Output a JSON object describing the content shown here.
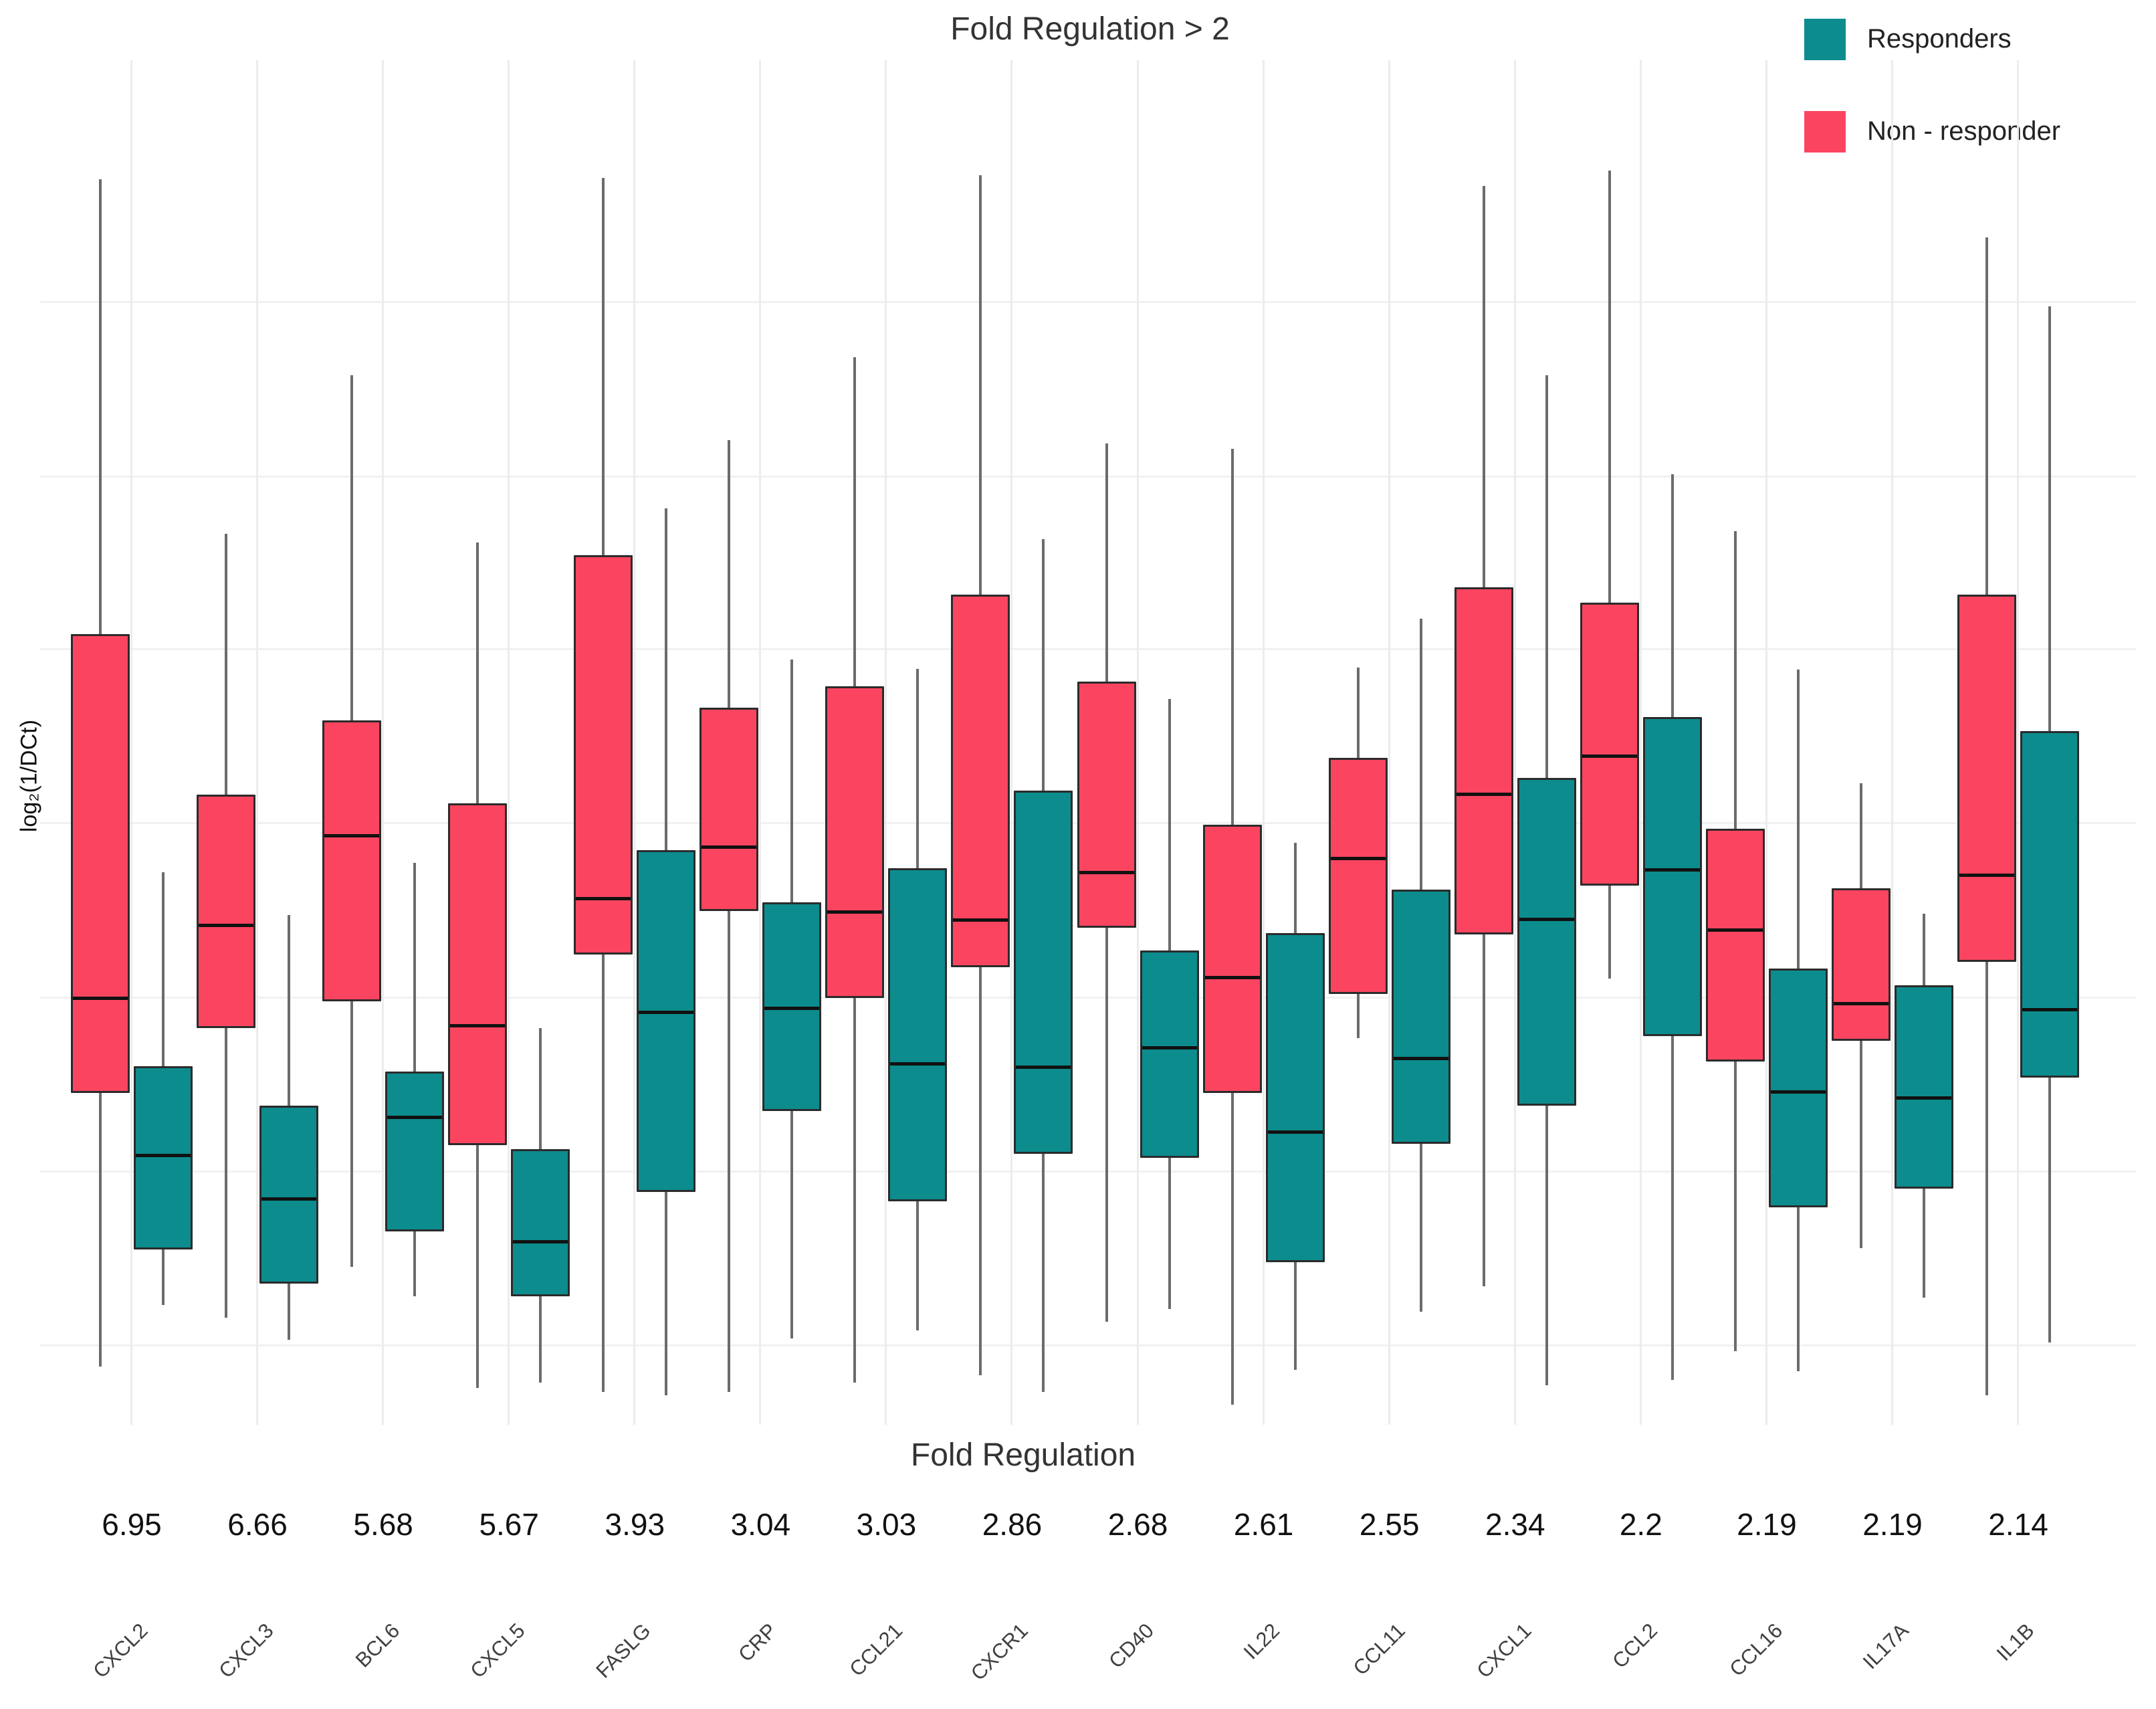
{
  "title": "Fold Regulation > 2",
  "y_axis_label": "log₂(1/DCt)",
  "x_axis_title": "Fold Regulation",
  "legend": {
    "items": [
      {
        "label": "Responders",
        "color": "#0D8C8E"
      },
      {
        "label": "Non - responder",
        "color": "#FB4560"
      }
    ]
  },
  "colors": {
    "responders": "#0D8C8E",
    "non_responder": "#FB4560",
    "whisker": "#6b6b6b",
    "box_border": "#2b2b2b",
    "median": "#111111"
  },
  "chart_data": {
    "type": "boxplot",
    "title": "Fold Regulation > 2",
    "xlabel": "Fold Regulation",
    "ylabel": "log₂(1/DCt)",
    "legend_position": "top-right",
    "grid": true,
    "y_unit": "relative scale 0-100 (no numeric ticks shown)",
    "categories": [
      "CXCL2",
      "CXCL3",
      "BCL6",
      "CXCL5",
      "FASLG",
      "CRP",
      "CCL21",
      "CXCR1",
      "CD40",
      "IL22",
      "CCL11",
      "CXCL1",
      "CCL2",
      "CCL16",
      "IL17A",
      "IL1B"
    ],
    "fold_regulation": [
      "6.95",
      "6.66",
      "5.68",
      "5.67",
      "3.93",
      "3.04",
      "3.03",
      "2.86",
      "2.68",
      "2.61",
      "2.55",
      "2.34",
      "2.2",
      "2.19",
      "2.19",
      "2.14"
    ],
    "series": [
      {
        "name": "Non - responder",
        "color": "#FB4560",
        "boxes": [
          {
            "low": 4.6,
            "q1": 26.1,
            "median": 33.6,
            "q3": 62.2,
            "high": 98.0
          },
          {
            "low": 8.4,
            "q1": 31.2,
            "median": 39.4,
            "q3": 49.6,
            "high": 70.1
          },
          {
            "low": 12.4,
            "q1": 33.3,
            "median": 46.5,
            "q3": 55.4,
            "high": 82.6
          },
          {
            "low": 2.9,
            "q1": 22.0,
            "median": 31.5,
            "q3": 48.9,
            "high": 69.4
          },
          {
            "low": 2.6,
            "q1": 37.0,
            "median": 41.4,
            "q3": 68.4,
            "high": 98.1
          },
          {
            "low": 2.6,
            "q1": 40.4,
            "median": 45.5,
            "q3": 56.4,
            "high": 77.5
          },
          {
            "low": 3.3,
            "q1": 33.6,
            "median": 40.4,
            "q3": 58.1,
            "high": 84.0
          },
          {
            "low": 3.9,
            "q1": 36.0,
            "median": 39.7,
            "q3": 65.3,
            "high": 98.3
          },
          {
            "low": 8.1,
            "q1": 39.1,
            "median": 43.5,
            "q3": 58.5,
            "high": 77.2
          },
          {
            "low": 1.6,
            "q1": 26.1,
            "median": 35.3,
            "q3": 47.2,
            "high": 76.8
          },
          {
            "low": 30.4,
            "q1": 33.9,
            "median": 44.7,
            "q3": 52.5,
            "high": 59.6
          },
          {
            "low": 10.9,
            "q1": 38.6,
            "median": 49.7,
            "q3": 65.9,
            "high": 97.5
          },
          {
            "low": 35.1,
            "q1": 42.4,
            "median": 52.7,
            "q3": 64.7,
            "high": 98.7
          },
          {
            "low": 5.8,
            "q1": 28.6,
            "median": 39.1,
            "q3": 46.9,
            "high": 70.3
          },
          {
            "low": 13.9,
            "q1": 30.2,
            "median": 33.2,
            "q3": 42.2,
            "high": 50.5
          },
          {
            "low": 2.3,
            "q1": 36.4,
            "median": 43.3,
            "q3": 65.3,
            "high": 93.4
          }
        ]
      },
      {
        "name": "Responders",
        "color": "#0D8C8E",
        "boxes": [
          {
            "low": 9.4,
            "q1": 13.8,
            "median": 21.3,
            "q3": 28.2,
            "high": 43.5
          },
          {
            "low": 6.7,
            "q1": 11.1,
            "median": 17.9,
            "q3": 25.1,
            "high": 40.1
          },
          {
            "low": 10.1,
            "q1": 15.2,
            "median": 24.4,
            "q3": 27.8,
            "high": 44.2
          },
          {
            "low": 3.3,
            "q1": 10.1,
            "median": 14.5,
            "q3": 21.7,
            "high": 31.2
          },
          {
            "low": 2.3,
            "q1": 18.3,
            "median": 32.6,
            "q3": 45.2,
            "high": 72.1
          },
          {
            "low": 6.8,
            "q1": 24.7,
            "median": 32.9,
            "q3": 41.1,
            "high": 60.2
          },
          {
            "low": 7.4,
            "q1": 17.6,
            "median": 28.5,
            "q3": 43.8,
            "high": 59.5
          },
          {
            "low": 2.6,
            "q1": 21.3,
            "median": 28.2,
            "q3": 49.9,
            "high": 69.7
          },
          {
            "low": 9.1,
            "q1": 21.0,
            "median": 29.8,
            "q3": 37.3,
            "high": 57.1
          },
          {
            "low": 4.3,
            "q1": 12.8,
            "median": 23.1,
            "q3": 38.7,
            "high": 45.8
          },
          {
            "low": 8.9,
            "q1": 22.1,
            "median": 28.9,
            "q3": 42.1,
            "high": 63.4
          },
          {
            "low": 3.1,
            "q1": 25.1,
            "median": 39.9,
            "q3": 50.9,
            "high": 82.6
          },
          {
            "low": 3.5,
            "q1": 30.6,
            "median": 43.8,
            "q3": 55.7,
            "high": 74.8
          },
          {
            "low": 4.2,
            "q1": 17.1,
            "median": 26.3,
            "q3": 35.9,
            "high": 59.4
          },
          {
            "low": 10.0,
            "q1": 18.6,
            "median": 25.8,
            "q3": 34.6,
            "high": 40.2
          },
          {
            "low": 6.5,
            "q1": 27.3,
            "median": 32.7,
            "q3": 54.6,
            "high": 88.0
          }
        ]
      }
    ]
  }
}
